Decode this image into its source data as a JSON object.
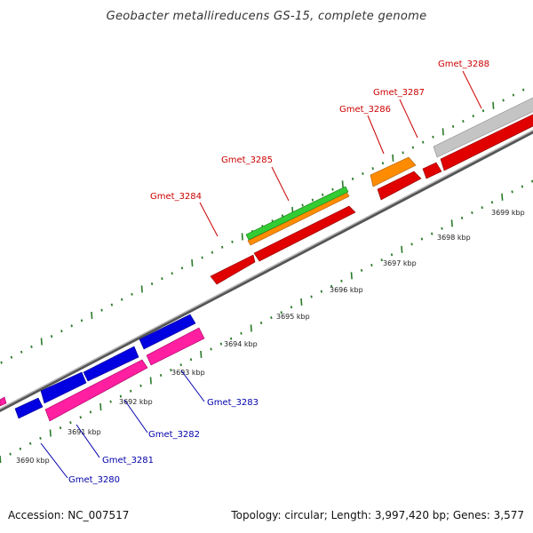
{
  "title": "Geobacter metallireducens GS-15, complete genome",
  "footer": {
    "accession": "Accession: NC_007517",
    "summary": "Topology: circular; Length: 3,997,420 bp; Genes: 3,577"
  },
  "colors": {
    "forward_label": "#cc0000",
    "reverse_label": "#0000aa",
    "tick": "#2a7a2a",
    "backbone": "#7a7a7a"
  },
  "scale_labels": [
    "3690 kbp",
    "3691 kbp",
    "3692 kbp",
    "3693 kbp",
    "3694 kbp",
    "3695 kbp",
    "3696 kbp",
    "3697 kbp",
    "3698 kbp",
    "3699 kbp"
  ],
  "genes": [
    {
      "name": "Gmet_3280",
      "strand": "reverse"
    },
    {
      "name": "Gmet_3281",
      "strand": "reverse"
    },
    {
      "name": "Gmet_3282",
      "strand": "reverse"
    },
    {
      "name": "Gmet_3283",
      "strand": "reverse"
    },
    {
      "name": "Gmet_3284",
      "strand": "forward"
    },
    {
      "name": "Gmet_3285",
      "strand": "forward"
    },
    {
      "name": "Gmet_3286",
      "strand": "forward"
    },
    {
      "name": "Gmet_3287",
      "strand": "forward"
    },
    {
      "name": "Gmet_3288",
      "strand": "forward"
    }
  ]
}
